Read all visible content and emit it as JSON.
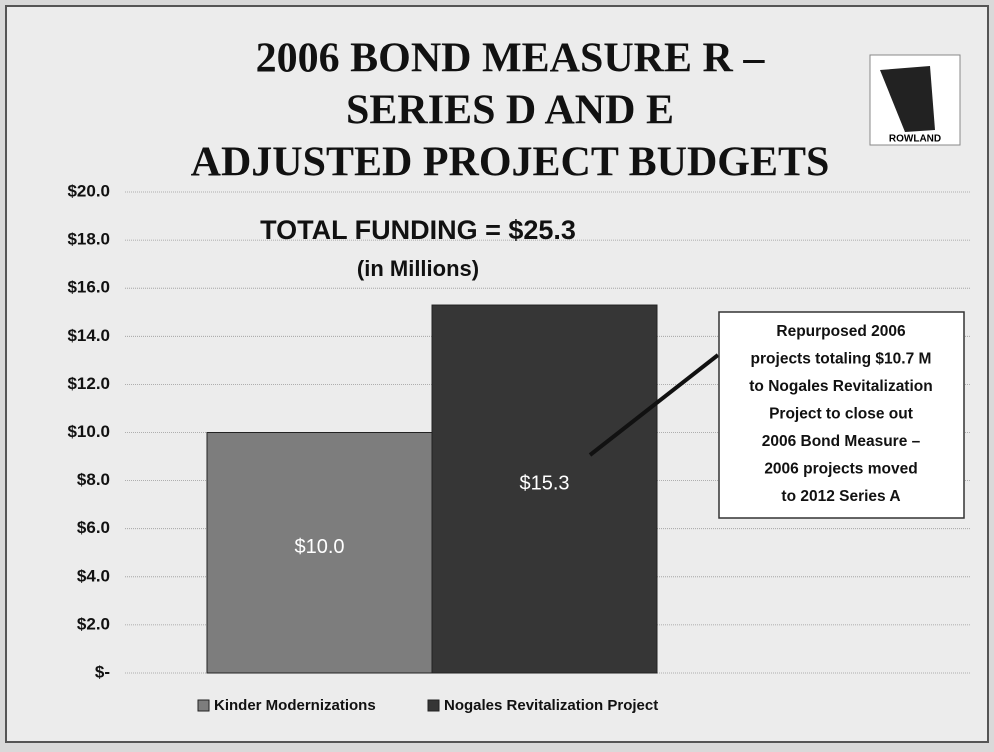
{
  "chart_data": {
    "type": "bar",
    "title_lines": [
      "2006 BOND MEASURE R –",
      "SERIES D AND E",
      "ADJUSTED PROJECT BUDGETS"
    ],
    "subtitle_lines": [
      "TOTAL FUNDING = $25.3",
      "(in Millions)"
    ],
    "logo_text": "ROWLAND",
    "series": [
      {
        "name": "Kinder Modernizations",
        "color": "#7d7d7d",
        "values": [
          10
        ],
        "value_labels": [
          "$10.0"
        ]
      },
      {
        "name": "Nogales Revitalization Project",
        "color": "#363636",
        "values": [
          15.3
        ],
        "value_labels": [
          "$15.3"
        ]
      }
    ],
    "ylim": [
      0,
      20
    ],
    "yticks": [
      {
        "value": 0,
        "label": "$-"
      },
      {
        "value": 2,
        "label": "$2.0"
      },
      {
        "value": 4,
        "label": "$4.0"
      },
      {
        "value": 6,
        "label": "$6.0"
      },
      {
        "value": 8,
        "label": "$8.0"
      },
      {
        "value": 10,
        "label": "$10.0"
      },
      {
        "value": 12,
        "label": "$12.0"
      },
      {
        "value": 14,
        "label": "$14.0"
      },
      {
        "value": 16,
        "label": "$16.0"
      },
      {
        "value": 18,
        "label": "$18.0"
      },
      {
        "value": 20,
        "label": "$20.0"
      }
    ],
    "grid": true,
    "legend": "bottom",
    "annotation_lines": [
      "Repurposed 2006",
      "projects totaling $10.7 M",
      "to Nogales Revitalization",
      "Project to close out",
      "2006 Bond Measure –",
      "2006 projects moved",
      "to 2012 Series A"
    ]
  }
}
